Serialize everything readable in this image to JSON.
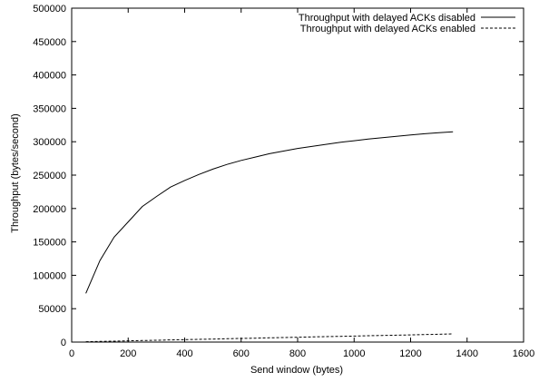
{
  "chart_data": {
    "type": "line",
    "title": "",
    "xlabel": "Send window (bytes)",
    "ylabel": "Throughput (bytes/second)",
    "xlim": [
      0,
      1600
    ],
    "ylim": [
      0,
      500000
    ],
    "x_ticks": [
      0,
      200,
      400,
      600,
      800,
      1000,
      1200,
      1400,
      1600
    ],
    "y_ticks": [
      0,
      50000,
      100000,
      150000,
      200000,
      250000,
      300000,
      350000,
      400000,
      450000,
      500000
    ],
    "grid": false,
    "legend_position": "top-right",
    "series": [
      {
        "name": "Throughput with delayed ACKs disabled",
        "line_style": "solid",
        "color": "#000000",
        "x": [
          50,
          100,
          150,
          200,
          250,
          300,
          350,
          400,
          450,
          500,
          550,
          600,
          650,
          700,
          750,
          800,
          850,
          900,
          950,
          1000,
          1050,
          1100,
          1150,
          1200,
          1250,
          1300,
          1350
        ],
        "y": [
          73000,
          122000,
          157000,
          180000,
          203000,
          218000,
          232000,
          242000,
          251000,
          259000,
          266000,
          272000,
          277000,
          282000,
          286000,
          290000,
          293000,
          296000,
          299000,
          301500,
          304000,
          306000,
          308000,
          310000,
          312000,
          313500,
          315000
        ]
      },
      {
        "name": "Throughput with delayed ACKs enabled",
        "line_style": "dashed",
        "color": "#000000",
        "x": [
          50,
          100,
          150,
          200,
          250,
          300,
          350,
          400,
          450,
          500,
          550,
          600,
          650,
          700,
          750,
          800,
          850,
          900,
          950,
          1000,
          1050,
          1100,
          1150,
          1200,
          1250,
          1300,
          1350
        ],
        "y": [
          500,
          950,
          1400,
          1850,
          2300,
          2700,
          3200,
          3650,
          4100,
          4550,
          5000,
          5450,
          5900,
          6350,
          6800,
          7250,
          7700,
          8100,
          8550,
          9000,
          9450,
          9900,
          10350,
          10800,
          11250,
          11700,
          12200
        ]
      }
    ]
  }
}
